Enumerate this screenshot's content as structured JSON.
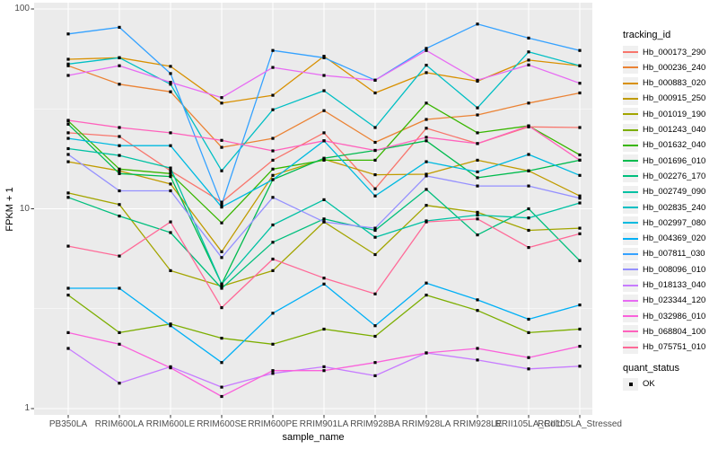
{
  "legend": {
    "tracking_title": "tracking_id",
    "quant_title": "quant_status",
    "quant_items": [
      {
        "label": "OK"
      }
    ]
  },
  "chart_data": {
    "type": "line",
    "title": "",
    "xlabel": "sample_name",
    "ylabel": "FPKM + 1",
    "y_scale": "log10",
    "ylim": [
      1,
      100
    ],
    "grid": true,
    "legend_position": "right",
    "marker": "black-square",
    "panel_color": "#ebebeb",
    "y_ticks": [
      {
        "label": "100",
        "value": 100
      },
      {
        "label": "10",
        "value": 10
      },
      {
        "label": "1",
        "value": 1
      }
    ],
    "y_minor_ticks": [
      3.1623,
      31.623
    ],
    "categories": [
      "PB350LA",
      "RRIM600LA",
      "RRIM600LE",
      "RRIM600SE",
      "RRIM600PE",
      "RRIM901LA",
      "RRIM928BA",
      "RRIM928LA",
      "RRIM928LE",
      "RRII105LA_Cold",
      "RRII105LA_Stressed"
    ],
    "series": [
      {
        "name": "Hb_000173_290",
        "color": "#F8766D",
        "values": [
          24,
          23,
          15.5,
          10.8,
          17.5,
          24,
          12.6,
          25.3,
          21.2,
          25.7,
          25.5
        ]
      },
      {
        "name": "Hb_000236_240",
        "color": "#EB8335",
        "values": [
          52,
          42,
          38.5,
          20.3,
          22.5,
          31,
          21.5,
          28,
          29.5,
          33.8,
          38
        ]
      },
      {
        "name": "Hb_000883_020",
        "color": "#D89000",
        "values": [
          56,
          57,
          51.6,
          33.8,
          37,
          58,
          38,
          48,
          43.5,
          55.5,
          52
        ]
      },
      {
        "name": "Hb_000915_250",
        "color": "#C09B00",
        "values": [
          17.2,
          15.5,
          13.3,
          6.1,
          14.7,
          17.7,
          14.8,
          14.9,
          17.5,
          15.5,
          11.6
        ]
      },
      {
        "name": "Hb_001019_190",
        "color": "#A3A500",
        "values": [
          12,
          10.5,
          4.9,
          4.1,
          4.9,
          8.6,
          5.9,
          10.4,
          9.6,
          7.8,
          8.0
        ]
      },
      {
        "name": "Hb_001243_040",
        "color": "#7CAE00",
        "values": [
          3.7,
          2.4,
          2.65,
          2.25,
          2.1,
          2.5,
          2.3,
          3.7,
          3.1,
          2.4,
          2.5
        ]
      },
      {
        "name": "Hb_001632_040",
        "color": "#39B600",
        "values": [
          27.5,
          15.8,
          15.0,
          8.5,
          15.8,
          17.5,
          17.5,
          33.8,
          24,
          26,
          18.6
        ]
      },
      {
        "name": "Hb_001696_010",
        "color": "#00BB4E",
        "values": [
          26.5,
          15.0,
          14.5,
          4.2,
          14.0,
          17.9,
          19.6,
          21.9,
          14.3,
          15.5,
          17.5
        ]
      },
      {
        "name": "Hb_002276_170",
        "color": "#00BF7D",
        "values": [
          11.4,
          9.2,
          7.6,
          4.0,
          6.8,
          8.9,
          7.8,
          12.5,
          7.4,
          10.0,
          5.5
        ]
      },
      {
        "name": "Hb_002749_090",
        "color": "#00C1A3",
        "values": [
          20,
          18.5,
          16,
          4.2,
          8.3,
          11.1,
          7.2,
          8.7,
          9.3,
          9.0,
          10.7
        ]
      },
      {
        "name": "Hb_002835_240",
        "color": "#00BFC4",
        "values": [
          53,
          57,
          42,
          15.5,
          31.3,
          39,
          25.5,
          52.3,
          32,
          61,
          52
        ]
      },
      {
        "name": "Hb_002997_080",
        "color": "#00BAE0",
        "values": [
          22.5,
          20.7,
          20.7,
          10.2,
          14.0,
          21.9,
          11.6,
          17.2,
          15.3,
          18.7,
          14.7
        ]
      },
      {
        "name": "Hb_004369_020",
        "color": "#00B0F6",
        "values": [
          4.0,
          4.0,
          2.6,
          1.7,
          3.0,
          4.2,
          2.6,
          4.25,
          3.5,
          2.8,
          3.3
        ]
      },
      {
        "name": "Hb_007811_030",
        "color": "#35A2FF",
        "values": [
          75,
          81,
          47.5,
          10.5,
          62,
          57,
          44,
          63.5,
          84,
          71.5,
          62
        ]
      },
      {
        "name": "Hb_008096_010",
        "color": "#9590FF",
        "values": [
          18.7,
          12.3,
          12.3,
          5.7,
          11.4,
          8.6,
          8.0,
          14.6,
          13,
          13,
          11.3
        ]
      },
      {
        "name": "Hb_018133_040",
        "color": "#C77CFF",
        "values": [
          2.0,
          1.34,
          1.62,
          1.28,
          1.5,
          1.62,
          1.46,
          1.9,
          1.75,
          1.58,
          1.63
        ]
      },
      {
        "name": "Hb_023344_120",
        "color": "#E76BF3",
        "values": [
          46.5,
          52,
          43,
          36,
          51,
          46.5,
          44,
          62,
          44,
          52.5,
          42.5
        ]
      },
      {
        "name": "Hb_032986_010",
        "color": "#FA62DB",
        "values": [
          2.4,
          2.1,
          1.6,
          1.15,
          1.55,
          1.55,
          1.7,
          1.9,
          2.0,
          1.8,
          2.05
        ]
      },
      {
        "name": "Hb_068804_100",
        "color": "#FF62BC",
        "values": [
          27.7,
          25.5,
          24,
          22,
          19.5,
          21.9,
          19.6,
          22.8,
          21.2,
          26,
          17.5
        ]
      },
      {
        "name": "Hb_075751_010",
        "color": "#FF6A98",
        "values": [
          6.5,
          5.8,
          8.6,
          3.2,
          5.6,
          4.5,
          3.75,
          8.6,
          8.9,
          6.4,
          7.5
        ]
      }
    ]
  }
}
